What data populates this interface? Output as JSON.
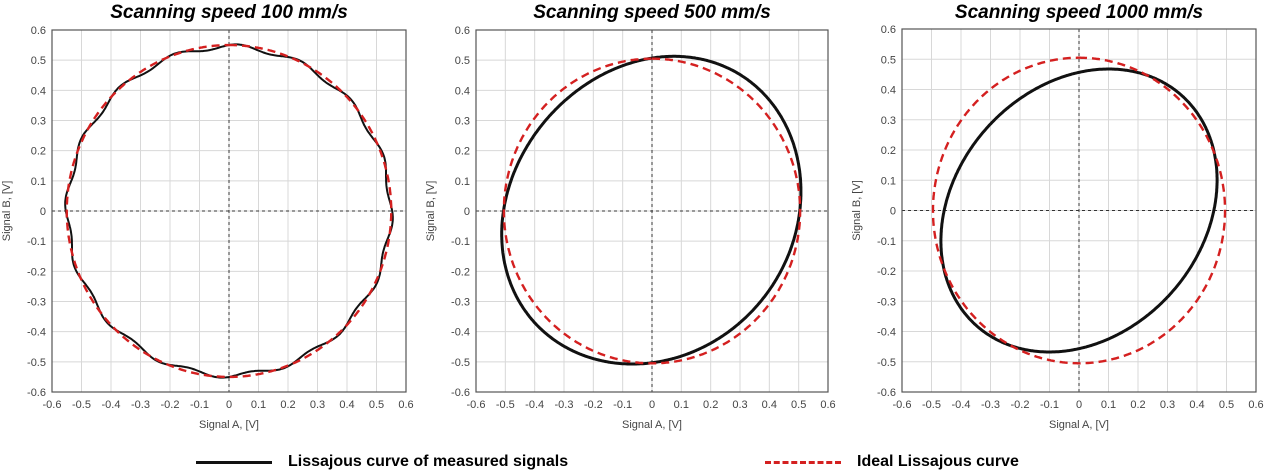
{
  "chart_data": [
    {
      "type": "line",
      "title": "Scanning speed 100 mm/s",
      "xlabel": "Signal A, [V]",
      "ylabel": "Signal B, [V]",
      "xlim": [
        -0.6,
        0.6
      ],
      "ylim": [
        -0.6,
        0.6
      ],
      "xticks": [
        "-0.6",
        "-0.5",
        "-0.4",
        "-0.3",
        "-0.2",
        "-0.1",
        "0",
        "0.1",
        "0.2",
        "0.3",
        "0.4",
        "0.5",
        "0.6"
      ],
      "yticks": [
        "-0.6",
        "-0.5",
        "-0.4",
        "-0.3",
        "-0.2",
        "-0.1",
        "0",
        "0.1",
        "0.2",
        "0.3",
        "0.4",
        "0.5",
        "0.6"
      ],
      "grid": true,
      "series": [
        {
          "name": "Lissajous curve of measured signals",
          "amplitude_a": 0.548,
          "amplitude_b": 0.545,
          "phase_deg": 90,
          "ripple_amplitude": 0.008,
          "ripple_harmonic": 16
        },
        {
          "name": "Ideal Lissajous curve",
          "amplitude_a": 0.55,
          "amplitude_b": 0.55,
          "phase_deg": 90
        }
      ]
    },
    {
      "type": "line",
      "title": "Scanning speed 500 mm/s",
      "xlabel": "Signal A, [V]",
      "ylabel": "Signal B, [V]",
      "xlim": [
        -0.6,
        0.6
      ],
      "ylim": [
        -0.6,
        0.6
      ],
      "xticks": [
        "-0.6",
        "-0.5",
        "-0.4",
        "-0.3",
        "-0.2",
        "-0.1",
        "0",
        "0.1",
        "0.2",
        "0.3",
        "0.4",
        "0.5",
        "0.6"
      ],
      "yticks": [
        "-0.6",
        "-0.5",
        "-0.4",
        "-0.3",
        "-0.2",
        "-0.1",
        "0",
        "0.1",
        "0.2",
        "0.3",
        "0.4",
        "0.5",
        "0.6"
      ],
      "grid": true,
      "series": [
        {
          "name": "Lissajous curve of measured signals",
          "amplitude_a": 0.51,
          "amplitude_b": 0.51,
          "phase_deg": 82,
          "ripple_amplitude": 0.003,
          "ripple_harmonic": 3
        },
        {
          "name": "Ideal Lissajous curve",
          "amplitude_a": 0.505,
          "amplitude_b": 0.505,
          "phase_deg": 90
        }
      ]
    },
    {
      "type": "line",
      "title": "Scanning speed 1000 mm/s",
      "xlabel": "Signal A, [V]",
      "ylabel": "Signal B, [V]",
      "xlim": [
        -0.6,
        0.6
      ],
      "ylim": [
        -0.6,
        0.6
      ],
      "xticks": [
        "-0.6",
        "-0.5",
        "-0.4",
        "-0.3",
        "-0.2",
        "-0.1",
        "0",
        "0.1",
        "0.2",
        "0.3",
        "0.4",
        "0.5",
        "0.6"
      ],
      "yticks": [
        "-0.6",
        "-0.5",
        "-0.4",
        "-0.3",
        "-0.2",
        "-0.1",
        "0",
        "0.1",
        "0.2",
        "0.3",
        "0.4",
        "0.5",
        "0.6"
      ],
      "grid": true,
      "series": [
        {
          "name": "Lissajous curve of measured signals",
          "amplitude_a": 0.47,
          "amplitude_b": 0.465,
          "phase_deg": 78,
          "ripple_amplitude": 0.003,
          "ripple_harmonic": 2
        },
        {
          "name": "Ideal Lissajous curve",
          "amplitude_a": 0.495,
          "amplitude_b": 0.505,
          "phase_deg": 90
        }
      ]
    }
  ],
  "legend": {
    "measured": "Lissajous curve of measured signals",
    "ideal": "Ideal Lissajous curve"
  },
  "colors": {
    "measured": "#111111",
    "ideal": "#d42020",
    "grid": "#d8d8d8"
  }
}
